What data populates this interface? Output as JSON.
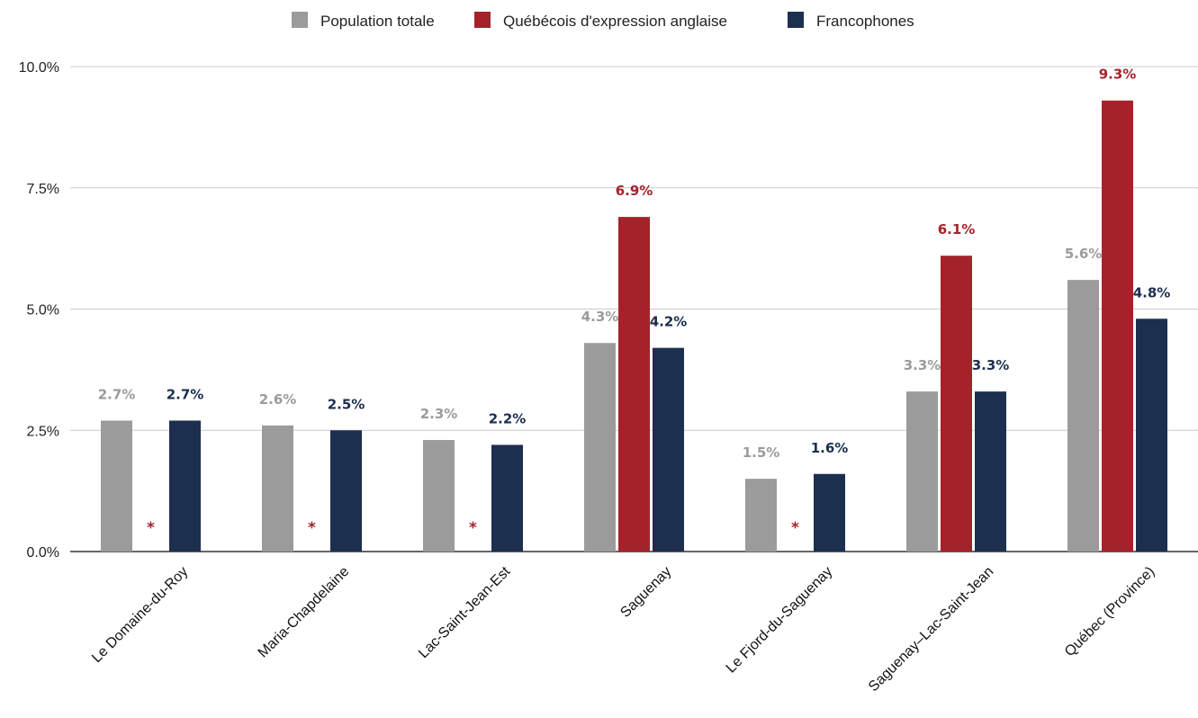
{
  "chart_data": {
    "type": "bar",
    "categories": [
      "Le Domaine-du-Roy",
      "Maria-Chapdelaine",
      "Lac-Saint-Jean-Est",
      "Saguenay",
      "Le Fjord-du-Saguenay",
      "Saguenay–Lac-Saint-Jean",
      "Québec (Province)"
    ],
    "series": [
      {
        "name": "Population totale",
        "color": "#9b9b9b",
        "values": [
          2.7,
          2.6,
          2.3,
          4.3,
          1.5,
          3.3,
          5.6
        ],
        "labels": [
          "2.7%",
          "2.6%",
          "2.3%",
          "4.3%",
          "1.5%",
          "3.3%",
          "5.6%"
        ]
      },
      {
        "name": "Québécois d'expression anglaise",
        "color": "#a4232a",
        "values": [
          null,
          null,
          null,
          6.9,
          null,
          6.1,
          9.3
        ],
        "labels": [
          "*",
          "*",
          "*",
          "6.9%",
          "*",
          "6.1%",
          "9.3%"
        ]
      },
      {
        "name": "Francophones",
        "color": "#1c2f4f",
        "values": [
          2.7,
          2.5,
          2.2,
          4.2,
          1.6,
          3.3,
          4.8
        ],
        "labels": [
          "2.7%",
          "2.5%",
          "2.2%",
          "4.2%",
          "1.6%",
          "3.3%",
          "4.8%"
        ]
      }
    ],
    "ylim": [
      0,
      10
    ],
    "yticks": [
      0,
      2.5,
      5,
      7.5,
      10
    ],
    "ytick_labels": [
      "0.0%",
      "2.5%",
      "5.0%",
      "7.5%",
      "10.0%"
    ],
    "grid": true,
    "legend_position": "top-center",
    "title": "",
    "xlabel": "",
    "ylabel": ""
  }
}
